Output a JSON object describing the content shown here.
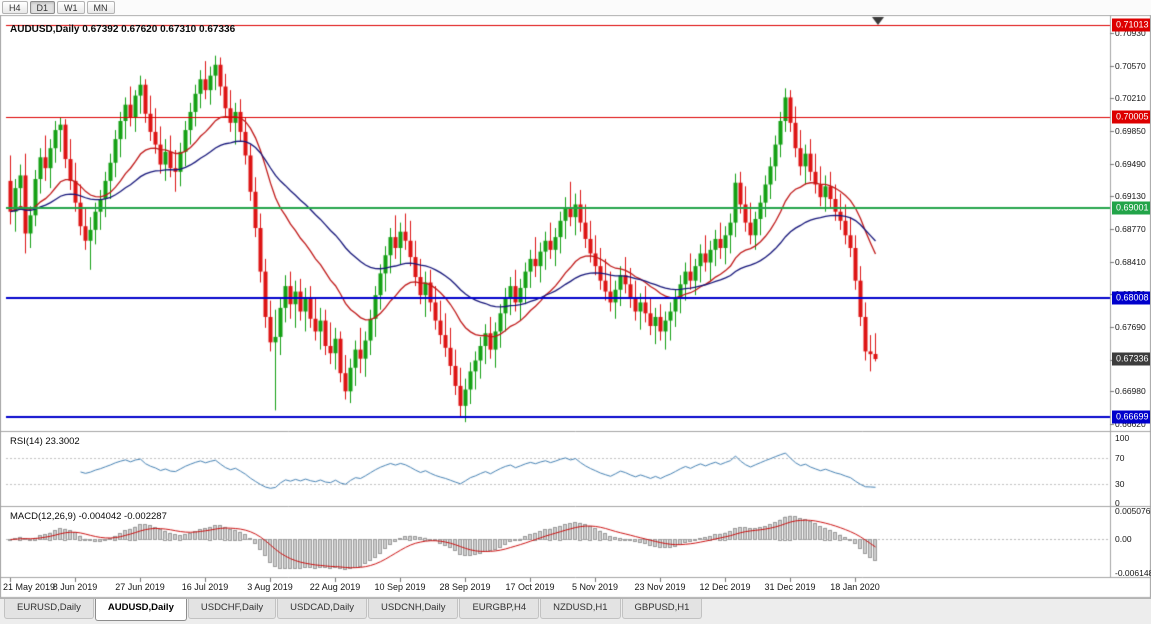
{
  "toolbar": {
    "buttons": [
      "H4",
      "D1",
      "W1",
      "MN"
    ],
    "active": "D1"
  },
  "chart": {
    "title_line": "AUDUSD,Daily 0.67392 0.67620 0.67310 0.67336"
  },
  "indicators": {
    "rsi_label_line": "RSI(14) 23.3002",
    "macd_label_line": "MACD(12,26,9) -0.004042 -0.002287"
  },
  "tabs": [
    {
      "label": "EURUSD,Daily"
    },
    {
      "label": "AUDUSD,Daily",
      "active": true
    },
    {
      "label": "USDCHF,Daily"
    },
    {
      "label": "USDCAD,Daily"
    },
    {
      "label": "USDCNH,Daily"
    },
    {
      "label": "EURGBP,H4"
    },
    {
      "label": "NZDUSD,H1"
    },
    {
      "label": "GBPUSD,H1"
    }
  ],
  "chart_data": {
    "type": "candlestick",
    "symbol": "AUDUSD",
    "timeframe": "Daily",
    "ohlc_line": {
      "open": 0.67392,
      "high": 0.6762,
      "low": 0.6731,
      "close": 0.67336
    },
    "up_color": "#14a014",
    "down_color": "#dd1414",
    "y_ticks": [
      {
        "v": 0.7093,
        "label": "0.70930"
      },
      {
        "v": 0.7057,
        "label": "0.70570"
      },
      {
        "v": 0.7021,
        "label": "0.70210"
      },
      {
        "v": 0.6985,
        "label": "0.69850"
      },
      {
        "v": 0.6949,
        "label": "0.69490"
      },
      {
        "v": 0.6913,
        "label": "0.69130"
      },
      {
        "v": 0.6877,
        "label": "0.68770"
      },
      {
        "v": 0.6841,
        "label": "0.68410"
      },
      {
        "v": 0.6805,
        "label": "0.68050"
      },
      {
        "v": 0.6769,
        "label": "0.67690"
      },
      {
        "v": 0.6733,
        "label": "0.67330"
      },
      {
        "v": 0.6698,
        "label": "0.66980"
      },
      {
        "v": 0.6662,
        "label": "0.66620"
      }
    ],
    "levels": [
      {
        "v": 0.71013,
        "label": "0.71013",
        "color": "#dd0000",
        "width": 1
      },
      {
        "v": 0.70005,
        "label": "0.70005",
        "color": "#dd0000",
        "width": 1
      },
      {
        "v": 0.69001,
        "label": "0.69001",
        "color": "#22a449",
        "width": 2
      },
      {
        "v": 0.68008,
        "label": "0.68008",
        "color": "#0000cc",
        "width": 2
      },
      {
        "v": 0.66699,
        "label": "0.66699",
        "color": "#0000cc",
        "width": 2
      }
    ],
    "current_price": {
      "v": 0.67336,
      "label": "0.67336",
      "bg": "#3d3d3d"
    },
    "x_labels": [
      {
        "i": 0,
        "label": "21 May 2019"
      },
      {
        "i": 13,
        "label": "8 Jun 2019"
      },
      {
        "i": 26,
        "label": "27 Jun 2019"
      },
      {
        "i": 39,
        "label": "16 Jul 2019"
      },
      {
        "i": 52,
        "label": "3 Aug 2019"
      },
      {
        "i": 65,
        "label": "22 Aug 2019"
      },
      {
        "i": 78,
        "label": "10 Sep 2019"
      },
      {
        "i": 91,
        "label": "28 Sep 2019"
      },
      {
        "i": 104,
        "label": "17 Oct 2019"
      },
      {
        "i": 117,
        "label": "5 Nov 2019"
      },
      {
        "i": 130,
        "label": "23 Nov 2019"
      },
      {
        "i": 143,
        "label": "12 Dec 2019"
      },
      {
        "i": 156,
        "label": "31 Dec 2019"
      },
      {
        "i": 169,
        "label": "18 Jan 2020"
      }
    ],
    "overlays": [
      {
        "name": "ma-fast",
        "method": "ema",
        "period": 20,
        "color": "#c01818"
      },
      {
        "name": "ma-slow",
        "method": "ema",
        "period": 45,
        "color": "#15157a"
      }
    ],
    "rsi": {
      "period": 14,
      "value": 23.3002,
      "color": "#4682B4",
      "levels": [
        70,
        30
      ],
      "range": [
        0,
        100
      ],
      "ticks": [
        {
          "v": 100,
          "label": "100"
        },
        {
          "v": 70,
          "label": "70"
        },
        {
          "v": 30,
          "label": "30"
        },
        {
          "v": 0,
          "label": "0"
        }
      ]
    },
    "macd": {
      "fast": 12,
      "slow": 26,
      "signal": 9,
      "main_value": -0.004042,
      "signal_value": -0.002287,
      "hist_color": "#cfcfcf",
      "hist_border": "#9c9c9c",
      "signal_color": "#cc1111",
      "range": [
        -0.0068,
        0.0057
      ],
      "ticks": [
        {
          "v": 0.005076,
          "label": "0.005076"
        },
        {
          "v": 0,
          "label": "0.00"
        },
        {
          "v": -0.006148,
          "label": "-0.006148"
        }
      ]
    },
    "candles": [
      [
        0.693,
        0.6958,
        0.6882,
        0.6896
      ],
      [
        0.6896,
        0.6932,
        0.6874,
        0.6922
      ],
      [
        0.6922,
        0.6948,
        0.6898,
        0.6936
      ],
      [
        0.6936,
        0.696,
        0.685,
        0.6872
      ],
      [
        0.6872,
        0.6902,
        0.6856,
        0.6892
      ],
      [
        0.6892,
        0.6942,
        0.688,
        0.6932
      ],
      [
        0.6932,
        0.6966,
        0.6916,
        0.6956
      ],
      [
        0.6956,
        0.698,
        0.693,
        0.6944
      ],
      [
        0.6944,
        0.6976,
        0.6922,
        0.6966
      ],
      [
        0.6966,
        0.6996,
        0.695,
        0.6986
      ],
      [
        0.6986,
        0.7,
        0.6962,
        0.6992
      ],
      [
        0.6992,
        0.6998,
        0.6944,
        0.6954
      ],
      [
        0.6954,
        0.6976,
        0.692,
        0.693
      ],
      [
        0.693,
        0.695,
        0.6896,
        0.6906
      ],
      [
        0.6906,
        0.6926,
        0.687,
        0.688
      ],
      [
        0.688,
        0.69,
        0.6854,
        0.6864
      ],
      [
        0.6864,
        0.689,
        0.6832,
        0.6876
      ],
      [
        0.6876,
        0.6906,
        0.686,
        0.6896
      ],
      [
        0.6896,
        0.692,
        0.6876,
        0.691
      ],
      [
        0.691,
        0.694,
        0.689,
        0.693
      ],
      [
        0.693,
        0.696,
        0.691,
        0.695
      ],
      [
        0.695,
        0.6986,
        0.6934,
        0.6976
      ],
      [
        0.6976,
        0.7006,
        0.6956,
        0.6996
      ],
      [
        0.6996,
        0.7022,
        0.6976,
        0.7014
      ],
      [
        0.7014,
        0.7034,
        0.699,
        0.7
      ],
      [
        0.7,
        0.703,
        0.6984,
        0.7024
      ],
      [
        0.7024,
        0.7046,
        0.7004,
        0.7036
      ],
      [
        0.7036,
        0.7042,
        0.6994,
        0.7004
      ],
      [
        0.7004,
        0.7024,
        0.6974,
        0.6984
      ],
      [
        0.6984,
        0.701,
        0.696,
        0.697
      ],
      [
        0.697,
        0.699,
        0.6938,
        0.6948
      ],
      [
        0.6948,
        0.6976,
        0.693,
        0.6962
      ],
      [
        0.6962,
        0.698,
        0.6934,
        0.6944
      ],
      [
        0.6944,
        0.6964,
        0.6918,
        0.694
      ],
      [
        0.694,
        0.6972,
        0.6924,
        0.6962
      ],
      [
        0.6962,
        0.6996,
        0.6946,
        0.6986
      ],
      [
        0.6986,
        0.7016,
        0.697,
        0.7006
      ],
      [
        0.7006,
        0.7036,
        0.699,
        0.7026
      ],
      [
        0.7026,
        0.7052,
        0.701,
        0.7042
      ],
      [
        0.7042,
        0.7062,
        0.702,
        0.703
      ],
      [
        0.703,
        0.7056,
        0.7014,
        0.7046
      ],
      [
        0.7046,
        0.7068,
        0.703,
        0.7058
      ],
      [
        0.7058,
        0.7066,
        0.7024,
        0.7034
      ],
      [
        0.7034,
        0.7048,
        0.7,
        0.701
      ],
      [
        0.701,
        0.703,
        0.6984,
        0.6994
      ],
      [
        0.6994,
        0.7016,
        0.697,
        0.7006
      ],
      [
        0.7006,
        0.702,
        0.6974,
        0.6984
      ],
      [
        0.6984,
        0.7,
        0.6948,
        0.6958
      ],
      [
        0.6958,
        0.697,
        0.6908,
        0.6918
      ],
      [
        0.6918,
        0.6934,
        0.6868,
        0.6878
      ],
      [
        0.6878,
        0.6894,
        0.6818,
        0.683
      ],
      [
        0.683,
        0.6844,
        0.6768,
        0.678
      ],
      [
        0.678,
        0.6798,
        0.6742,
        0.6752
      ],
      [
        0.6752,
        0.6788,
        0.6677,
        0.6758
      ],
      [
        0.6758,
        0.68,
        0.6738,
        0.679
      ],
      [
        0.679,
        0.6826,
        0.6774,
        0.6814
      ],
      [
        0.6814,
        0.683,
        0.6778,
        0.6794
      ],
      [
        0.6794,
        0.682,
        0.6768,
        0.6808
      ],
      [
        0.6808,
        0.6822,
        0.6776,
        0.6786
      ],
      [
        0.6786,
        0.6812,
        0.6764,
        0.68
      ],
      [
        0.68,
        0.6814,
        0.6768,
        0.6778
      ],
      [
        0.6778,
        0.68,
        0.6754,
        0.6764
      ],
      [
        0.6764,
        0.679,
        0.6744,
        0.6776
      ],
      [
        0.6776,
        0.6788,
        0.6738,
        0.6748
      ],
      [
        0.6748,
        0.6774,
        0.6728,
        0.674
      ],
      [
        0.674,
        0.6768,
        0.6722,
        0.6756
      ],
      [
        0.6756,
        0.6764,
        0.6708,
        0.6718
      ],
      [
        0.6718,
        0.6738,
        0.6689,
        0.6698
      ],
      [
        0.6698,
        0.6734,
        0.6685,
        0.6724
      ],
      [
        0.6724,
        0.6754,
        0.6704,
        0.6744
      ],
      [
        0.6744,
        0.6768,
        0.6718,
        0.6734
      ],
      [
        0.6734,
        0.6764,
        0.6714,
        0.6754
      ],
      [
        0.6754,
        0.6788,
        0.6738,
        0.6778
      ],
      [
        0.6778,
        0.6814,
        0.6758,
        0.6804
      ],
      [
        0.6804,
        0.6838,
        0.6788,
        0.6828
      ],
      [
        0.6828,
        0.6858,
        0.6808,
        0.6848
      ],
      [
        0.6848,
        0.6878,
        0.6828,
        0.6868
      ],
      [
        0.6868,
        0.6892,
        0.6844,
        0.6856
      ],
      [
        0.6856,
        0.6884,
        0.6838,
        0.6874
      ],
      [
        0.6874,
        0.6894,
        0.6854,
        0.6864
      ],
      [
        0.6864,
        0.6886,
        0.6836,
        0.6846
      ],
      [
        0.6846,
        0.6864,
        0.6814,
        0.6824
      ],
      [
        0.6824,
        0.6844,
        0.6794,
        0.6804
      ],
      [
        0.6804,
        0.683,
        0.678,
        0.6818
      ],
      [
        0.6818,
        0.6832,
        0.6786,
        0.6796
      ],
      [
        0.6796,
        0.6814,
        0.6766,
        0.6776
      ],
      [
        0.6776,
        0.6798,
        0.675,
        0.676
      ],
      [
        0.676,
        0.6784,
        0.6736,
        0.6746
      ],
      [
        0.6746,
        0.6768,
        0.6716,
        0.6726
      ],
      [
        0.6726,
        0.6744,
        0.6694,
        0.6704
      ],
      [
        0.6704,
        0.6724,
        0.667,
        0.6682
      ],
      [
        0.6682,
        0.6712,
        0.6664,
        0.67
      ],
      [
        0.67,
        0.673,
        0.6684,
        0.672
      ],
      [
        0.672,
        0.6742,
        0.67,
        0.6732
      ],
      [
        0.6732,
        0.6758,
        0.6712,
        0.6748
      ],
      [
        0.6748,
        0.6772,
        0.6728,
        0.6762
      ],
      [
        0.6762,
        0.678,
        0.6734,
        0.6744
      ],
      [
        0.6744,
        0.6774,
        0.6724,
        0.6764
      ],
      [
        0.6764,
        0.6794,
        0.6746,
        0.6784
      ],
      [
        0.6784,
        0.6812,
        0.6764,
        0.6802
      ],
      [
        0.6802,
        0.6824,
        0.6782,
        0.6814
      ],
      [
        0.6814,
        0.6832,
        0.6786,
        0.6796
      ],
      [
        0.6796,
        0.6822,
        0.6776,
        0.6812
      ],
      [
        0.6812,
        0.684,
        0.6794,
        0.683
      ],
      [
        0.683,
        0.6854,
        0.6812,
        0.6844
      ],
      [
        0.6844,
        0.6868,
        0.6824,
        0.6836
      ],
      [
        0.6836,
        0.6862,
        0.6818,
        0.6852
      ],
      [
        0.6852,
        0.6874,
        0.6832,
        0.6864
      ],
      [
        0.6864,
        0.6884,
        0.6844,
        0.6854
      ],
      [
        0.6854,
        0.6878,
        0.6836,
        0.6868
      ],
      [
        0.6868,
        0.6896,
        0.685,
        0.6886
      ],
      [
        0.6886,
        0.6912,
        0.6866,
        0.69
      ],
      [
        0.69,
        0.6929,
        0.688,
        0.689
      ],
      [
        0.689,
        0.6916,
        0.687,
        0.6904
      ],
      [
        0.6904,
        0.692,
        0.6874,
        0.6884
      ],
      [
        0.6884,
        0.6904,
        0.6856,
        0.6866
      ],
      [
        0.6866,
        0.6886,
        0.684,
        0.685
      ],
      [
        0.685,
        0.687,
        0.6826,
        0.6836
      ],
      [
        0.6836,
        0.6856,
        0.681,
        0.682
      ],
      [
        0.682,
        0.6844,
        0.6798,
        0.6808
      ],
      [
        0.6808,
        0.683,
        0.6786,
        0.6796
      ],
      [
        0.6796,
        0.682,
        0.6778,
        0.681
      ],
      [
        0.681,
        0.6836,
        0.6792,
        0.6826
      ],
      [
        0.6826,
        0.6846,
        0.6806,
        0.6816
      ],
      [
        0.6816,
        0.6834,
        0.679,
        0.68
      ],
      [
        0.68,
        0.682,
        0.6776,
        0.6786
      ],
      [
        0.6786,
        0.6806,
        0.6766,
        0.6796
      ],
      [
        0.6796,
        0.6814,
        0.6774,
        0.6784
      ],
      [
        0.6784,
        0.68,
        0.676,
        0.677
      ],
      [
        0.677,
        0.679,
        0.675,
        0.678
      ],
      [
        0.678,
        0.6794,
        0.6754,
        0.6764
      ],
      [
        0.6764,
        0.6786,
        0.6744,
        0.6776
      ],
      [
        0.6776,
        0.6796,
        0.6754,
        0.6786
      ],
      [
        0.6786,
        0.681,
        0.6769,
        0.68
      ],
      [
        0.68,
        0.6826,
        0.6784,
        0.6816
      ],
      [
        0.6816,
        0.684,
        0.6798,
        0.683
      ],
      [
        0.683,
        0.685,
        0.681,
        0.682
      ],
      [
        0.682,
        0.6844,
        0.6804,
        0.6836
      ],
      [
        0.6836,
        0.686,
        0.6818,
        0.685
      ],
      [
        0.685,
        0.687,
        0.683,
        0.684
      ],
      [
        0.684,
        0.6864,
        0.682,
        0.6854
      ],
      [
        0.6854,
        0.6876,
        0.6836,
        0.6866
      ],
      [
        0.6866,
        0.6884,
        0.6844,
        0.6856
      ],
      [
        0.6856,
        0.688,
        0.6838,
        0.687
      ],
      [
        0.687,
        0.6894,
        0.685,
        0.6884
      ],
      [
        0.6884,
        0.6938,
        0.6868,
        0.6928
      ],
      [
        0.6928,
        0.694,
        0.6894,
        0.6904
      ],
      [
        0.6904,
        0.6924,
        0.6874,
        0.6884
      ],
      [
        0.6884,
        0.6906,
        0.686,
        0.687
      ],
      [
        0.687,
        0.6896,
        0.6854,
        0.6888
      ],
      [
        0.6888,
        0.6914,
        0.687,
        0.6906
      ],
      [
        0.6906,
        0.6936,
        0.689,
        0.6926
      ],
      [
        0.6926,
        0.6956,
        0.691,
        0.6946
      ],
      [
        0.6946,
        0.698,
        0.693,
        0.697
      ],
      [
        0.697,
        0.7006,
        0.6956,
        0.6996
      ],
      [
        0.6996,
        0.7032,
        0.6984,
        0.7022
      ],
      [
        0.7022,
        0.703,
        0.6984,
        0.6994
      ],
      [
        0.6994,
        0.7012,
        0.6956,
        0.6966
      ],
      [
        0.6966,
        0.6986,
        0.6936,
        0.6946
      ],
      [
        0.6946,
        0.697,
        0.6926,
        0.696
      ],
      [
        0.696,
        0.6976,
        0.693,
        0.694
      ],
      [
        0.694,
        0.696,
        0.6916,
        0.6926
      ],
      [
        0.6926,
        0.6946,
        0.6902,
        0.6912
      ],
      [
        0.6912,
        0.6936,
        0.6896,
        0.6924
      ],
      [
        0.6924,
        0.694,
        0.69,
        0.691
      ],
      [
        0.691,
        0.6926,
        0.6886,
        0.6896
      ],
      [
        0.6896,
        0.6916,
        0.6876,
        0.6886
      ],
      [
        0.6886,
        0.6904,
        0.686,
        0.687
      ],
      [
        0.687,
        0.689,
        0.6846,
        0.6856
      ],
      [
        0.6856,
        0.687,
        0.681,
        0.682
      ],
      [
        0.682,
        0.6836,
        0.677,
        0.678
      ],
      [
        0.678,
        0.6796,
        0.6732,
        0.6742
      ],
      [
        0.6742,
        0.676,
        0.672,
        0.6739
      ],
      [
        0.67392,
        0.6762,
        0.6731,
        0.67336
      ]
    ]
  }
}
